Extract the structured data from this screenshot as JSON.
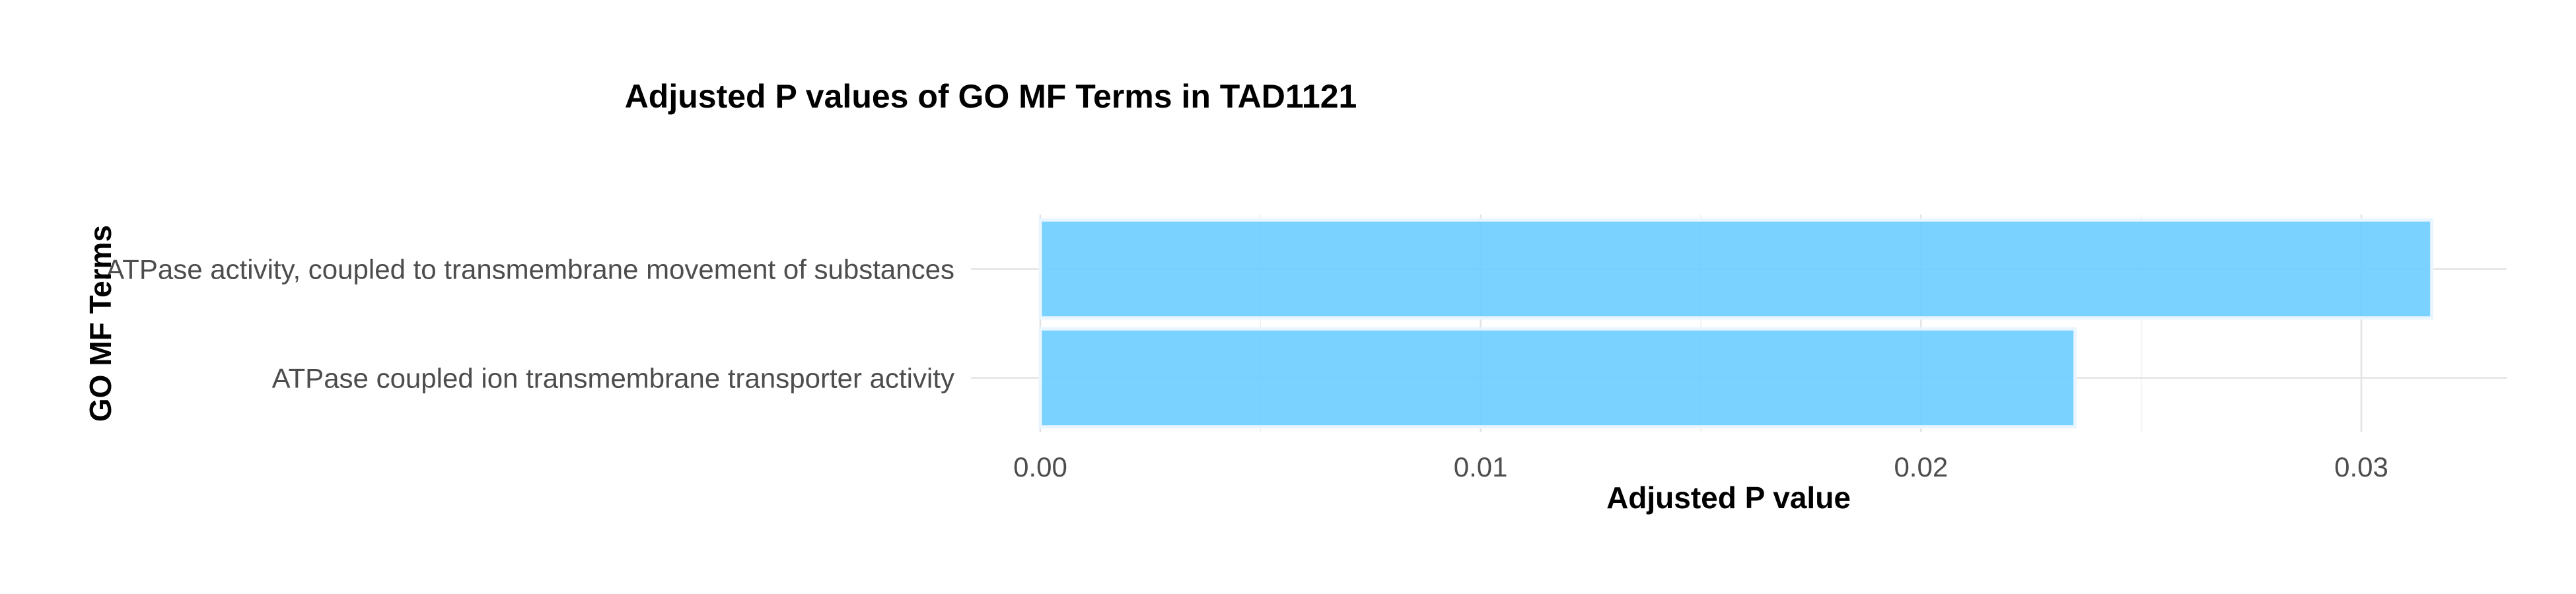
{
  "chart_data": {
    "type": "bar",
    "orientation": "horizontal",
    "title": "Adjusted P values of GO MF Terms in TAD1121",
    "xlabel": "Adjusted P value",
    "ylabel": "GO MF Terms",
    "categories": [
      "ATPase activity, coupled to transmembrane movement of substances",
      "ATPase coupled ion transmembrane transporter activity"
    ],
    "values": [
      0.0316,
      0.0235
    ],
    "xlim": [
      0,
      0.0333
    ],
    "xticks": [
      0.0,
      0.01,
      0.02,
      0.03
    ],
    "xtick_labels": [
      "0.00",
      "0.01",
      "0.02",
      "0.03"
    ],
    "bar_color": "#66ccff",
    "grid": true,
    "legend": "none"
  }
}
